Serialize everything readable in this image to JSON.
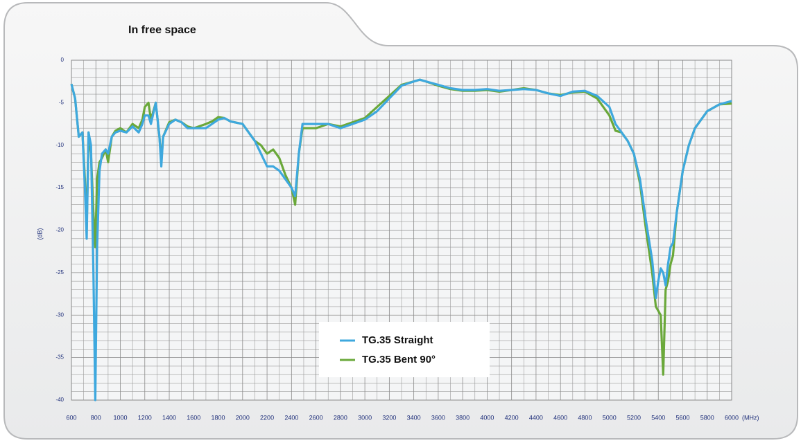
{
  "chart_data": {
    "type": "line",
    "title": "In free space",
    "y_label": "(dB)",
    "x_label": "(MHz)",
    "x": [
      600,
      630,
      660,
      690,
      710,
      725,
      740,
      760,
      780,
      795,
      810,
      830,
      850,
      880,
      900,
      930,
      960,
      1000,
      1050,
      1100,
      1150,
      1180,
      1200,
      1230,
      1250,
      1290,
      1320,
      1335,
      1350,
      1400,
      1450,
      1500,
      1550,
      1600,
      1700,
      1750,
      1800,
      1850,
      1900,
      2000,
      2050,
      2100,
      2150,
      2200,
      2250,
      2300,
      2350,
      2400,
      2430,
      2460,
      2490,
      2600,
      2700,
      2800,
      2900,
      3000,
      3100,
      3200,
      3300,
      3400,
      3450,
      3500,
      3600,
      3700,
      3800,
      3900,
      4000,
      4100,
      4200,
      4300,
      4400,
      4500,
      4600,
      4700,
      4800,
      4900,
      5000,
      5050,
      5100,
      5150,
      5200,
      5250,
      5300,
      5350,
      5380,
      5400,
      5420,
      5440,
      5460,
      5480,
      5500,
      5520,
      5550,
      5600,
      5650,
      5700,
      5800,
      5900,
      6000
    ],
    "series": [
      {
        "name": "TG.35 Bent 90°",
        "color": "#6aa83a",
        "values": [
          -2.8,
          -4.5,
          -9,
          -8.5,
          -14,
          -20,
          -8.5,
          -11,
          -18,
          -22,
          -14,
          -12,
          -11.5,
          -10.5,
          -12,
          -9,
          -8.3,
          -8,
          -8.5,
          -7.5,
          -8,
          -7,
          -5.5,
          -5,
          -7,
          -5,
          -9,
          -12,
          -9,
          -7.3,
          -7,
          -7.3,
          -7.8,
          -8,
          -7.5,
          -7.2,
          -6.7,
          -6.8,
          -7.2,
          -7.5,
          -8.5,
          -9.5,
          -10,
          -11,
          -10.5,
          -11.5,
          -13.5,
          -15,
          -17,
          -11,
          -8,
          -8,
          -7.5,
          -7.8,
          -7.3,
          -6.8,
          -5.5,
          -4.2,
          -2.9,
          -2.5,
          -2.3,
          -2.5,
          -3,
          -3.4,
          -3.6,
          -3.6,
          -3.5,
          -3.7,
          -3.5,
          -3.3,
          -3.5,
          -3.9,
          -4.1,
          -3.8,
          -3.7,
          -4.5,
          -6.5,
          -8.3,
          -8.5,
          -9.5,
          -11,
          -14.5,
          -20,
          -25,
          -29,
          -29.5,
          -30,
          -37,
          -27,
          -26,
          -24,
          -23,
          -18,
          -13,
          -10,
          -8,
          -6,
          -5.2,
          -5.1
        ]
      },
      {
        "name": "TG.35 Straight",
        "color": "#3ea8de",
        "values": [
          -2.8,
          -4.5,
          -9,
          -8.5,
          -15,
          -21,
          -8.5,
          -10,
          -25,
          -40,
          -22,
          -13,
          -11,
          -10.5,
          -11,
          -9,
          -8.5,
          -8.3,
          -8.5,
          -7.8,
          -8.5,
          -7.5,
          -6.5,
          -6.5,
          -7.5,
          -5,
          -9,
          -12.5,
          -9,
          -7.5,
          -7,
          -7.3,
          -8,
          -8,
          -8,
          -7.5,
          -7,
          -6.8,
          -7.2,
          -7.5,
          -8.5,
          -9.5,
          -11,
          -12.5,
          -12.5,
          -13,
          -14,
          -15,
          -16,
          -11,
          -7.5,
          -7.5,
          -7.5,
          -8,
          -7.5,
          -7,
          -6,
          -4.5,
          -3,
          -2.5,
          -2.3,
          -2.5,
          -2.9,
          -3.3,
          -3.5,
          -3.5,
          -3.4,
          -3.6,
          -3.5,
          -3.4,
          -3.5,
          -3.9,
          -4.2,
          -3.7,
          -3.6,
          -4.2,
          -5.5,
          -7.5,
          -8.5,
          -9.5,
          -11,
          -14,
          -19,
          -23.5,
          -28,
          -26,
          -24.5,
          -25,
          -26.5,
          -24,
          -22,
          -21.5,
          -18,
          -13,
          -10,
          -8,
          -6,
          -5.2,
          -4.8
        ]
      }
    ],
    "xlim": [
      600,
      6000
    ],
    "xticks": [
      600,
      800,
      1000,
      1200,
      1400,
      1600,
      1800,
      2000,
      2200,
      2400,
      2600,
      2800,
      3000,
      3200,
      3400,
      3600,
      3800,
      4000,
      4200,
      4400,
      4600,
      4800,
      5000,
      5200,
      5400,
      5600,
      5800,
      6000
    ],
    "ylim": [
      -40,
      0
    ],
    "yticks": [
      0,
      -5,
      -10,
      -15,
      -20,
      -25,
      -30,
      -35,
      -40
    ],
    "grid": true,
    "legend": "lower center"
  }
}
